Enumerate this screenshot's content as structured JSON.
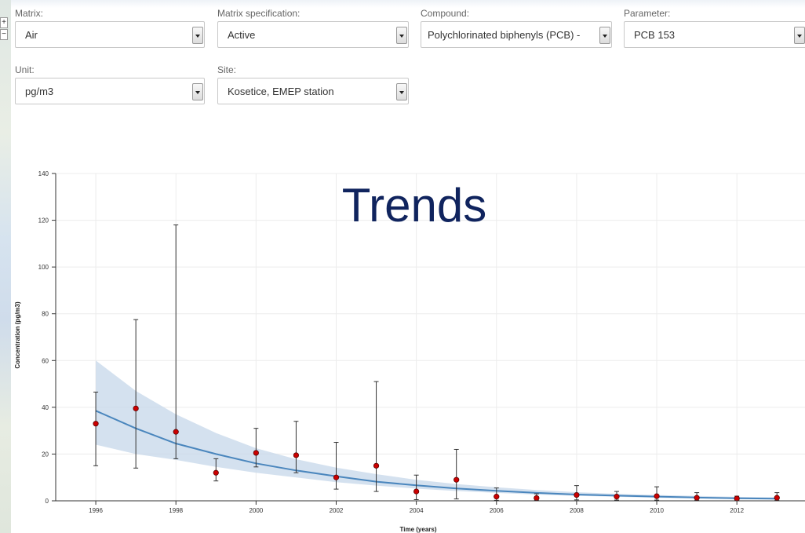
{
  "filters": {
    "matrix": {
      "label": "Matrix:",
      "value": "Air"
    },
    "matrix_spec": {
      "label": "Matrix specification:",
      "value": "Active"
    },
    "compound": {
      "label": "Compound:",
      "value": "Polychlorinated biphenyls (PCB) -"
    },
    "parameter": {
      "label": "Parameter:",
      "value": "PCB 153"
    },
    "unit": {
      "label": "Unit:",
      "value": "pg/m3"
    },
    "site": {
      "label": "Site:",
      "value": "Kosetice, EMEP station"
    }
  },
  "map": {
    "zoom_in": "+",
    "zoom_out": "−"
  },
  "chart_data": {
    "type": "scatter",
    "title": "Trends",
    "xlabel": "Time (years)",
    "ylabel": "Concentration (pg/m3)",
    "xlim": [
      1995,
      2013.7
    ],
    "ylim": [
      0,
      140
    ],
    "xticks": [
      1996,
      1998,
      2000,
      2002,
      2004,
      2006,
      2008,
      2010,
      2012
    ],
    "yticks": [
      0,
      20,
      40,
      60,
      80,
      100,
      120,
      140
    ],
    "grid": true,
    "colors": {
      "points": "#cc0000",
      "trend": "#4a86bd",
      "band": "#c5d7ea",
      "errorbars": "#333333"
    },
    "series": [
      {
        "type": "points_with_errorbars",
        "x": [
          1996,
          1997,
          1998,
          1999,
          2000,
          2001,
          2002,
          2003,
          2004,
          2005,
          2006,
          2007,
          2008,
          2009,
          2010,
          2011,
          2012,
          2013
        ],
        "y": [
          33,
          39.5,
          29.5,
          12,
          20.5,
          19.5,
          10,
          15,
          4,
          9,
          1.8,
          1.2,
          2.5,
          1.8,
          2,
          1.3,
          1,
          1.3
        ],
        "low": [
          15,
          14,
          18,
          8.5,
          14.5,
          12,
          5,
          4,
          0.5,
          0.8,
          0.2,
          0.2,
          0.4,
          0.3,
          0.3,
          0.2,
          0.2,
          0.2
        ],
        "high": [
          46.5,
          77.5,
          118,
          18,
          31,
          34,
          25,
          51,
          11,
          22,
          5.5,
          3,
          6.5,
          4,
          6,
          3.5,
          2,
          3.5
        ]
      },
      {
        "type": "trend_line",
        "x": [
          1996,
          1997,
          1998,
          1999,
          2000,
          2001,
          2002,
          2003,
          2004,
          2005,
          2006,
          2007,
          2008,
          2009,
          2010,
          2011,
          2012,
          2013
        ],
        "y": [
          38.5,
          31,
          24.5,
          20,
          16,
          13,
          10.5,
          8.2,
          6.6,
          5.3,
          4.3,
          3.4,
          2.7,
          2.2,
          1.8,
          1.4,
          1.1,
          0.9
        ],
        "band_low": [
          24,
          20,
          17.5,
          14.5,
          12,
          10,
          8,
          6.5,
          5.2,
          4.2,
          3.4,
          2.7,
          2.1,
          1.7,
          1.3,
          1.0,
          0.7,
          0.5
        ],
        "band_high": [
          60,
          47,
          37,
          29,
          22.5,
          17.8,
          14.2,
          11.4,
          9,
          7.2,
          5.8,
          4.6,
          3.7,
          3.0,
          2.5,
          2.1,
          1.7,
          1.4
        ]
      }
    ]
  }
}
